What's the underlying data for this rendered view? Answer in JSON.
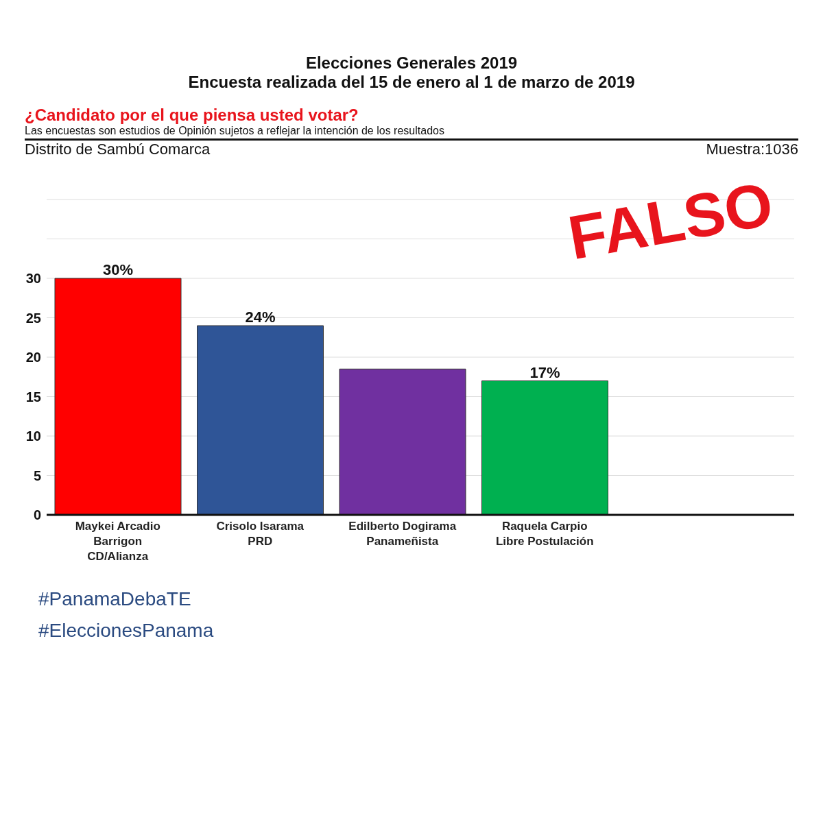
{
  "chart_data": {
    "type": "bar",
    "title": "Elecciones Generales 2019",
    "subtitle": "Encuesta realizada del 15 de enero al 1 de marzo de 2019",
    "annotations": [
      "¿Candidato por el que piensa usted votar?",
      "Las encuestas son estudios de Opinión sujetos a reflejar la intención de los resultados",
      "Distrito de Sambú Comarca",
      "Muestra:1036",
      "FALSO",
      "#PanamaDebaTE",
      "#EleccionesPanama"
    ],
    "categories": [
      "Maykei Arcadio\nBarrigon\nCD/Alianza",
      "Crisolo Isarama\nPRD",
      "Edilberto Dogirama\nPanameñista",
      "Raquela Carpio\nLibre Postulación"
    ],
    "values": [
      30,
      24,
      18.5,
      17
    ],
    "colors": [
      "#ff0000",
      "#2f5597",
      "#7030a0",
      "#00b050"
    ],
    "value_labels": [
      "30%",
      "24%",
      null,
      "17%"
    ],
    "ylim": [
      0,
      40
    ],
    "yticks": [
      0,
      5,
      10,
      15,
      20,
      25,
      30,
      {
        "value": 35,
        "label": null
      },
      {
        "value": 40,
        "label": null
      }
    ],
    "grid": "y"
  }
}
